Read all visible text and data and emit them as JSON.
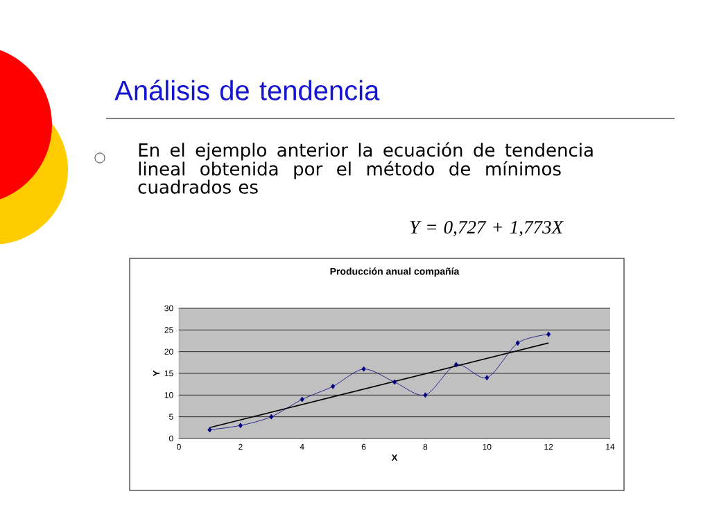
{
  "chart_data": {
    "type": "line",
    "title": "Producción anual compañía",
    "xlabel": "X",
    "ylabel": "Y",
    "annotations": [
      "Análisis de tendencia",
      "En el ejemplo anterior la ecuación de tendencia lineal obtenida por el método de mínimos cuadrados es",
      "Y = 0,727 + 1,773X"
    ],
    "series": [
      {
        "color": "#000080",
        "x": [
          1,
          2,
          3,
          4,
          5,
          6,
          7,
          8,
          9,
          10,
          11,
          12
        ],
        "values": [
          2,
          3,
          5,
          9,
          12,
          16,
          13,
          10,
          17,
          14,
          22,
          24
        ],
        "marker": "diamond"
      },
      {
        "color": "#000000",
        "x": [
          1,
          12
        ],
        "values": [
          2.5,
          22.0
        ],
        "marker": "none"
      }
    ],
    "xlim": [
      0,
      14
    ],
    "xticks": [
      0,
      2,
      4,
      6,
      8,
      10,
      12,
      14
    ],
    "ylim": [
      0,
      30
    ],
    "yticks": [
      0,
      5,
      10,
      15,
      20,
      25,
      30
    ],
    "grid": "y"
  }
}
